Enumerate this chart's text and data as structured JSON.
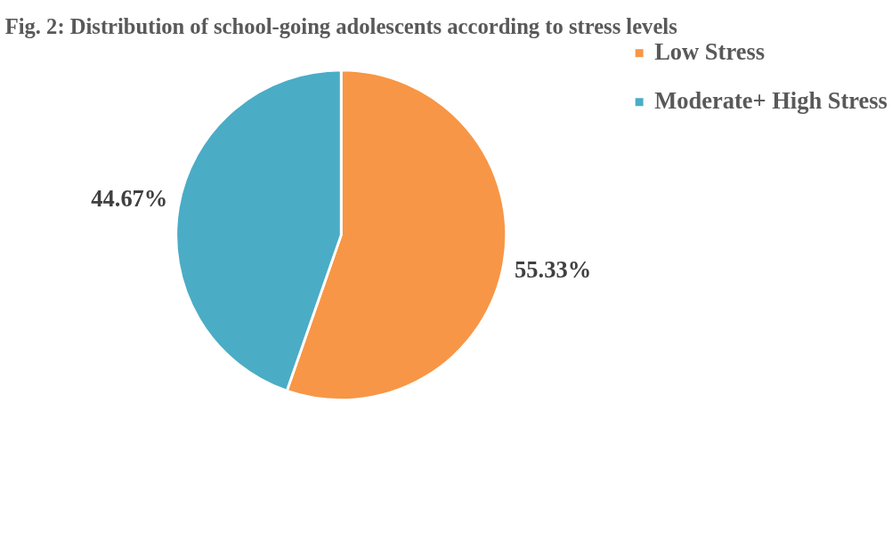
{
  "chart_data": {
    "type": "pie",
    "title": "Fig. 2: Distribution of school-going adolescents according to stress levels",
    "categories": [
      "Low Stress",
      "Moderate+ High Stress"
    ],
    "values": [
      55.33,
      44.67
    ],
    "colors": [
      "#f79646",
      "#4bacc6"
    ],
    "value_labels": [
      "55.33%",
      "44.67%"
    ],
    "legend": "right"
  }
}
